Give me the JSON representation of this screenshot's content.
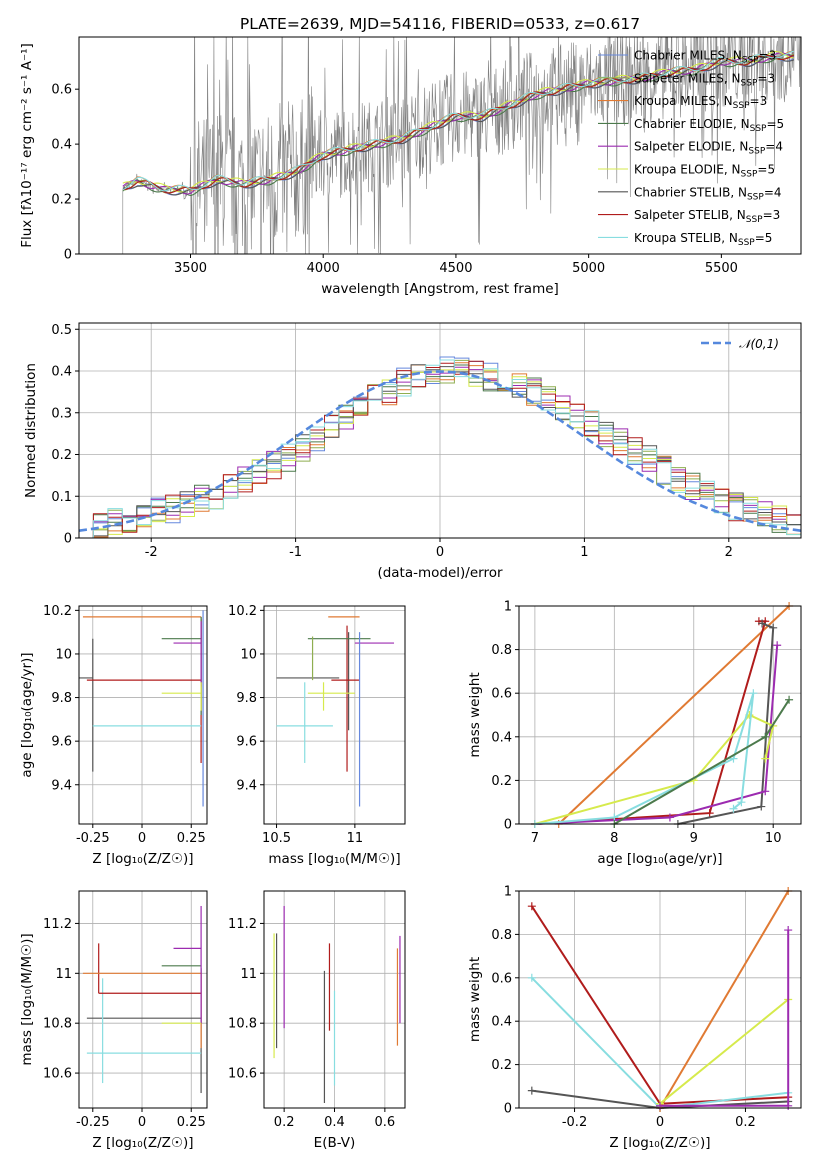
{
  "figure": {
    "title": "PLATE=2639, MJD=54116, FIBERID=0533, z=0.617"
  },
  "models": [
    {
      "name": "Chabrier MILES",
      "nssp": "3",
      "color": "#6688dd"
    },
    {
      "name": "Salpeter MILES",
      "nssp": "3",
      "color": "#8fae50"
    },
    {
      "name": "Kroupa MILES",
      "nssp": "3",
      "color": "#e07a33"
    },
    {
      "name": "Chabrier ELODIE",
      "nssp": "5",
      "color": "#4c7a4c"
    },
    {
      "name": "Salpeter ELODIE",
      "nssp": "4",
      "color": "#9c2bb0"
    },
    {
      "name": "Kroupa ELODIE",
      "nssp": "5",
      "color": "#d6ea4c"
    },
    {
      "name": "Chabrier STELIB",
      "nssp": "4",
      "color": "#555555"
    },
    {
      "name": "Salpeter STELIB",
      "nssp": "3",
      "color": "#b01c1c"
    },
    {
      "name": "Kroupa STELIB",
      "nssp": "5",
      "color": "#88dde0"
    }
  ],
  "chart_data": [
    {
      "id": "spectrum",
      "type": "line",
      "title": "PLATE=2639, MJD=54116, FIBERID=0533, z=0.617",
      "xlabel": "wavelength [Angstrom, rest frame]",
      "ylabel": "Flux [fλ10⁻¹⁷ erg cm⁻² s⁻¹ A⁻¹]",
      "xlim": [
        3080,
        5800
      ],
      "ylim": [
        0,
        0.79
      ],
      "xticks": [
        3500,
        4000,
        4500,
        5000,
        5500
      ],
      "yticks": [
        0.0,
        0.2,
        0.4,
        0.6
      ],
      "data_color": "#808080",
      "model_x": [
        3245,
        3300,
        3400,
        3500,
        3600,
        3700,
        3800,
        3900,
        4000,
        4100,
        4200,
        4300,
        4400,
        4500,
        4600,
        4700,
        4800,
        4900,
        5000,
        5100,
        5200,
        5300,
        5400,
        5500,
        5600,
        5700
      ],
      "model_y": [
        0.24,
        0.265,
        0.235,
        0.23,
        0.27,
        0.255,
        0.27,
        0.3,
        0.36,
        0.38,
        0.4,
        0.42,
        0.46,
        0.5,
        0.5,
        0.54,
        0.58,
        0.6,
        0.62,
        0.63,
        0.64,
        0.66,
        0.67,
        0.7,
        0.7,
        0.72
      ]
    },
    {
      "id": "residuals",
      "type": "histogram",
      "xlabel": "(data-model)/error",
      "ylabel": "Normed distribution",
      "xlim": [
        -2.5,
        2.5
      ],
      "ylim": [
        0,
        0.515
      ],
      "xticks": [
        -2,
        -1,
        0,
        1,
        2
      ],
      "yticks": [
        0.0,
        0.1,
        0.2,
        0.3,
        0.4,
        0.5
      ],
      "bin_width": 0.1,
      "legend": {
        "label": "𝒩(0,1)",
        "position": "top-right",
        "color": "#5588dd"
      },
      "baseline": [
        0.02,
        0.03,
        0.035,
        0.04,
        0.05,
        0.06,
        0.065,
        0.075,
        0.09,
        0.1,
        0.12,
        0.135,
        0.15,
        0.17,
        0.19,
        0.21,
        0.23,
        0.26,
        0.28,
        0.31,
        0.33,
        0.35,
        0.37,
        0.38,
        0.39,
        0.4,
        0.395,
        0.39,
        0.38,
        0.37,
        0.36,
        0.345,
        0.33,
        0.31,
        0.29,
        0.27,
        0.25,
        0.23,
        0.205,
        0.185,
        0.16,
        0.14,
        0.12,
        0.1,
        0.085,
        0.07,
        0.06,
        0.05,
        0.04,
        0.035
      ]
    },
    {
      "id": "age-vs-Z",
      "type": "errorbar",
      "xlabel": "Z [log₁₀(Z/Z☉)]",
      "ylabel": "age  [log₁₀(age/yr)]",
      "xlim": [
        -0.32,
        0.33
      ],
      "ylim": [
        9.22,
        10.22
      ],
      "xticks": [
        -0.25,
        0.0,
        0.25
      ],
      "yticks": [
        9.4,
        9.6,
        9.8,
        10.0,
        10.2
      ],
      "points": [
        {
          "model": 6,
          "x": -0.25,
          "y": 9.89,
          "xerr": [
            0.55,
            0.0
          ],
          "yerr": [
            0.43,
            0.18
          ]
        },
        {
          "model": 7,
          "x": 0.3,
          "y": 9.88,
          "xerr": [
            0.58,
            0.0
          ],
          "yerr": [
            0.38,
            0.28
          ]
        },
        {
          "model": 2,
          "x": 0.3,
          "y": 10.17,
          "xerr": [
            0.6,
            0.0
          ],
          "yerr": [
            0.1,
            0.0
          ]
        },
        {
          "model": 3,
          "x": 0.3,
          "y": 10.07,
          "xerr": [
            0.2,
            0.0
          ],
          "yerr": [
            0.35,
            0.1
          ]
        },
        {
          "model": 4,
          "x": 0.3,
          "y": 10.05,
          "xerr": [
            0.14,
            0.0
          ],
          "yerr": [
            0.2,
            0.1
          ]
        },
        {
          "model": 5,
          "x": 0.3,
          "y": 9.82,
          "xerr": [
            0.2,
            0.0
          ],
          "yerr": [
            0.08,
            0.05
          ]
        },
        {
          "model": 8,
          "x": 0.3,
          "y": 9.67,
          "xerr": [
            0.55,
            0.0
          ],
          "yerr": [
            0.0,
            0.0
          ]
        },
        {
          "model": 0,
          "x": 0.31,
          "y": 9.9,
          "xerr": [
            0.0,
            0.0
          ],
          "yerr": [
            0.6,
            0.3
          ]
        }
      ]
    },
    {
      "id": "age-vs-mass",
      "type": "errorbar",
      "xlabel": "mass [log₁₀(M/M☉)]",
      "ylabel": "",
      "xlim": [
        10.42,
        11.32
      ],
      "ylim": [
        9.22,
        10.22
      ],
      "xticks": [
        10.5,
        11.0
      ],
      "yticks": [
        9.4,
        9.6,
        9.8,
        10.0,
        10.2
      ],
      "points": [
        {
          "model": 6,
          "x": 10.8,
          "y": 9.89,
          "xerr": [
            0.3,
            0.1
          ],
          "yerr": [
            0.0,
            0.0
          ]
        },
        {
          "model": 6,
          "x": 10.96,
          "y": 10.0,
          "xerr": [
            0.0,
            0.0
          ],
          "yerr": [
            0.35,
            0.1
          ]
        },
        {
          "model": 7,
          "x": 10.95,
          "y": 9.88,
          "xerr": [
            0.1,
            0.08
          ],
          "yerr": [
            0.42,
            0.25
          ]
        },
        {
          "model": 2,
          "x": 10.95,
          "y": 10.17,
          "xerr": [
            0.12,
            0.08
          ],
          "yerr": [
            0.0,
            0.0
          ]
        },
        {
          "model": 3,
          "x": 11.0,
          "y": 10.07,
          "xerr": [
            0.3,
            0.1
          ],
          "yerr": [
            0.0,
            0.0
          ]
        },
        {
          "model": 4,
          "x": 11.1,
          "y": 10.05,
          "xerr": [
            0.1,
            0.15
          ],
          "yerr": [
            0.0,
            0.0
          ]
        },
        {
          "model": 5,
          "x": 10.8,
          "y": 9.82,
          "xerr": [
            0.1,
            0.2
          ],
          "yerr": [
            0.08,
            0.05
          ]
        },
        {
          "model": 8,
          "x": 10.68,
          "y": 9.67,
          "xerr": [
            0.18,
            0.18
          ],
          "yerr": [
            0.17,
            0.2
          ]
        },
        {
          "model": 0,
          "x": 11.03,
          "y": 9.75,
          "xerr": [
            0.0,
            0.0
          ],
          "yerr": [
            0.45,
            0.35
          ]
        },
        {
          "model": 1,
          "x": 10.73,
          "y": 9.88,
          "xerr": [
            0.0,
            0.0
          ],
          "yerr": [
            0.0,
            0.2
          ]
        }
      ]
    },
    {
      "id": "massweight-vs-age",
      "type": "line",
      "xlabel": "age  [log₁₀(age/yr)]",
      "ylabel": "mass weight",
      "xlim": [
        6.8,
        10.35
      ],
      "ylim": [
        0,
        1.0
      ],
      "xticks": [
        7,
        8,
        9,
        10
      ],
      "yticks": [
        0.0,
        0.2,
        0.4,
        0.6,
        0.8,
        1.0
      ],
      "series": [
        {
          "model": 2,
          "x": [
            7.3,
            10.2
          ],
          "y": [
            0.0,
            1.0
          ]
        },
        {
          "model": 7,
          "x": [
            7.0,
            9.2,
            9.9,
            9.82
          ],
          "y": [
            0.0,
            0.05,
            0.93,
            0.93
          ]
        },
        {
          "model": 6,
          "x": [
            8.8,
            9.85,
            10.0,
            9.86
          ],
          "y": [
            0.0,
            0.08,
            0.9,
            0.92
          ]
        },
        {
          "model": 4,
          "x": [
            7.0,
            8.7,
            9.9,
            10.05
          ],
          "y": [
            0.0,
            0.03,
            0.15,
            0.82
          ]
        },
        {
          "model": 5,
          "x": [
            7.0,
            9.0,
            9.7,
            10.0,
            9.9
          ],
          "y": [
            0.0,
            0.2,
            0.5,
            0.45,
            0.3
          ]
        },
        {
          "model": 8,
          "x": [
            7.0,
            8.0,
            9.5,
            9.75,
            9.6,
            9.5
          ],
          "y": [
            0.0,
            0.03,
            0.3,
            0.6,
            0.1,
            0.07
          ]
        },
        {
          "model": 3,
          "x": [
            8.0,
            9.9,
            10.2
          ],
          "y": [
            0.0,
            0.4,
            0.57
          ]
        }
      ]
    },
    {
      "id": "mass-vs-Z",
      "type": "errorbar",
      "xlabel": "Z [log₁₀(Z/Z☉)]",
      "ylabel": "mass [log₁₀(M/M☉)]",
      "xlim": [
        -0.32,
        0.33
      ],
      "ylim": [
        10.46,
        11.33
      ],
      "xticks": [
        -0.25,
        0.0,
        0.25
      ],
      "yticks": [
        10.6,
        10.8,
        11.0,
        11.2
      ],
      "points": [
        {
          "model": 6,
          "x": 0.3,
          "y": 10.82,
          "xerr": [
            0.58,
            0.0
          ],
          "yerr": [
            0.3,
            0.2
          ]
        },
        {
          "model": 8,
          "x": 0.3,
          "y": 10.68,
          "xerr": [
            0.58,
            0.0
          ],
          "yerr": [
            0.0,
            0.0
          ]
        },
        {
          "model": 8,
          "x": -0.2,
          "y": 10.68,
          "xerr": [
            0.0,
            0.0
          ],
          "yerr": [
            0.12,
            0.3
          ]
        },
        {
          "model": 7,
          "x": 0.3,
          "y": 10.92,
          "xerr": [
            0.52,
            0.0
          ],
          "yerr": [
            0.0,
            0.0
          ]
        },
        {
          "model": 7,
          "x": -0.22,
          "y": 10.92,
          "xerr": [
            0.0,
            0.0
          ],
          "yerr": [
            0.0,
            0.2
          ]
        },
        {
          "model": 2,
          "x": 0.3,
          "y": 11.0,
          "xerr": [
            0.6,
            0.0
          ],
          "yerr": [
            0.3,
            0.0
          ]
        },
        {
          "model": 3,
          "x": 0.3,
          "y": 11.03,
          "xerr": [
            0.2,
            0.0
          ],
          "yerr": [
            0.0,
            0.0
          ]
        },
        {
          "model": 4,
          "x": 0.3,
          "y": 11.1,
          "xerr": [
            0.14,
            0.0
          ],
          "yerr": [
            0.3,
            0.17
          ]
        },
        {
          "model": 5,
          "x": 0.3,
          "y": 10.8,
          "xerr": [
            0.2,
            0.0
          ],
          "yerr": [
            0.0,
            0.0
          ]
        }
      ]
    },
    {
      "id": "mass-vs-EBV",
      "type": "errorbar",
      "xlabel": "E(B-V)",
      "ylabel": "",
      "xlim": [
        0.12,
        0.68
      ],
      "ylim": [
        10.46,
        11.33
      ],
      "xticks": [
        0.2,
        0.4,
        0.6
      ],
      "yticks": [
        10.6,
        10.8,
        11.0,
        11.2
      ],
      "points": [
        {
          "model": 5,
          "x": 0.16,
          "y": 10.9,
          "xerr": [
            0.0,
            0.0
          ],
          "yerr": [
            0.24,
            0.26
          ]
        },
        {
          "model": 6,
          "x": 0.17,
          "y": 10.9,
          "xerr": [
            0.0,
            0.0
          ],
          "yerr": [
            0.2,
            0.26
          ]
        },
        {
          "model": 4,
          "x": 0.2,
          "y": 11.02,
          "xerr": [
            0.0,
            0.0
          ],
          "yerr": [
            0.24,
            0.25
          ]
        },
        {
          "model": 6,
          "x": 0.36,
          "y": 10.75,
          "xerr": [
            0.0,
            0.0
          ],
          "yerr": [
            0.27,
            0.26
          ]
        },
        {
          "model": 7,
          "x": 0.38,
          "y": 10.95,
          "xerr": [
            0.0,
            0.0
          ],
          "yerr": [
            0.18,
            0.17
          ]
        },
        {
          "model": 8,
          "x": 0.4,
          "y": 10.75,
          "xerr": [
            0.0,
            0.0
          ],
          "yerr": [
            0.2,
            0.18
          ]
        },
        {
          "model": 2,
          "x": 0.65,
          "y": 10.9,
          "xerr": [
            0.0,
            0.0
          ],
          "yerr": [
            0.19,
            0.2
          ]
        },
        {
          "model": 4,
          "x": 0.66,
          "y": 10.95,
          "xerr": [
            0.0,
            0.0
          ],
          "yerr": [
            0.15,
            0.2
          ]
        }
      ]
    },
    {
      "id": "massweight-vs-Z",
      "type": "line",
      "xlabel": "Z [log₁₀(Z/Z☉)]",
      "ylabel": "mass weight",
      "xlim": [
        -0.33,
        0.33
      ],
      "ylim": [
        0,
        1.0
      ],
      "xticks": [
        -0.2,
        0.0,
        0.2
      ],
      "yticks": [
        0.0,
        0.2,
        0.4,
        0.6,
        0.8,
        1.0
      ],
      "series": [
        {
          "model": 7,
          "x": [
            -0.3,
            0.0,
            0.3
          ],
          "y": [
            0.93,
            0.02,
            0.05
          ]
        },
        {
          "model": 8,
          "x": [
            -0.3,
            0.0,
            0.3
          ],
          "y": [
            0.6,
            0.0,
            0.07
          ]
        },
        {
          "model": 6,
          "x": [
            -0.3,
            0.0,
            0.3
          ],
          "y": [
            0.08,
            0.0,
            0.03
          ]
        },
        {
          "model": 2,
          "x": [
            0.0,
            0.3
          ],
          "y": [
            0.0,
            1.0
          ]
        },
        {
          "model": 5,
          "x": [
            0.0,
            0.3
          ],
          "y": [
            0.02,
            0.5
          ]
        },
        {
          "model": 4,
          "x": [
            0.0,
            0.3,
            0.3
          ],
          "y": [
            0.01,
            0.01,
            0.82
          ]
        }
      ]
    }
  ]
}
